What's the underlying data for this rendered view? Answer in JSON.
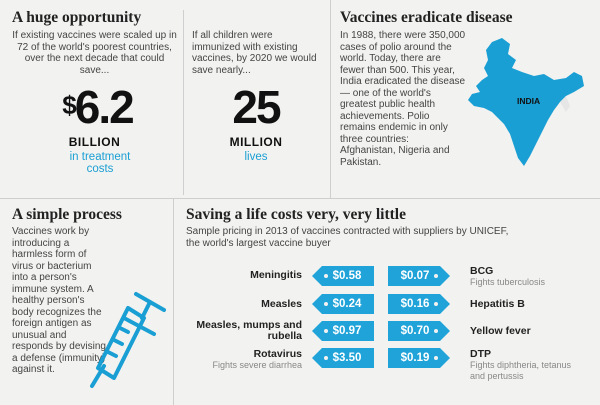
{
  "opportunity": {
    "title": "A huge opportunity",
    "left_text": "If existing vaccines were scaled up in 72 of the world's poorest countries, over the next decade that could save...",
    "left_currency": "$",
    "left_value": "6.2",
    "left_unit": "BILLION",
    "left_caption": "in treatment costs",
    "right_text": "If all children were immunized with existing vaccines, by 2020 we would save nearly...",
    "right_value": "25",
    "right_unit": "MILLION",
    "right_caption": "lives"
  },
  "eradicate": {
    "title": "Vaccines eradicate disease",
    "text": "In 1988, there were 350,000 cases of polio around the world. Today, there are fewer than 500. This year, India eradicated the disease — one of the world's greatest public health achievements. Polio remains endemic in only three countries: Afghanistan, Nigeria and Pakistan.",
    "map_label": "INDIA",
    "map_color": "#1a9fd4"
  },
  "process": {
    "title": "A simple process",
    "text": "Vaccines work by introducing a harmless form of virus or bacterium into a person's immune system. A healthy person's body recognizes the foreign antigen as unusual and responds by devising a defense (immunity) against it.",
    "icon": "syringe-icon"
  },
  "costs": {
    "title": "Saving a life costs very, very little",
    "subtitle": "Sample pricing in 2013 of vaccines contracted with suppliers by UNICEF, the world's largest vaccine buyer",
    "left": [
      {
        "name": "Meningitis",
        "sub": "",
        "price": "$0.58"
      },
      {
        "name": "Measles",
        "sub": "",
        "price": "$0.24"
      },
      {
        "name": "Measles, mumps and rubella",
        "sub": "",
        "price": "$0.97"
      },
      {
        "name": "Rotavirus",
        "sub": "Fights severe diarrhea",
        "price": "$3.50"
      }
    ],
    "right": [
      {
        "name": "BCG",
        "sub": "Fights tuberculosis",
        "price": "$0.07"
      },
      {
        "name": "Hepatitis B",
        "sub": "",
        "price": "$0.16"
      },
      {
        "name": "Yellow fever",
        "sub": "",
        "price": "$0.70"
      },
      {
        "name": "DTP",
        "sub": "Fights diphtheria, tetanus and pertussis",
        "price": "$0.19"
      }
    ],
    "tag_color": "#1fa3d8"
  }
}
